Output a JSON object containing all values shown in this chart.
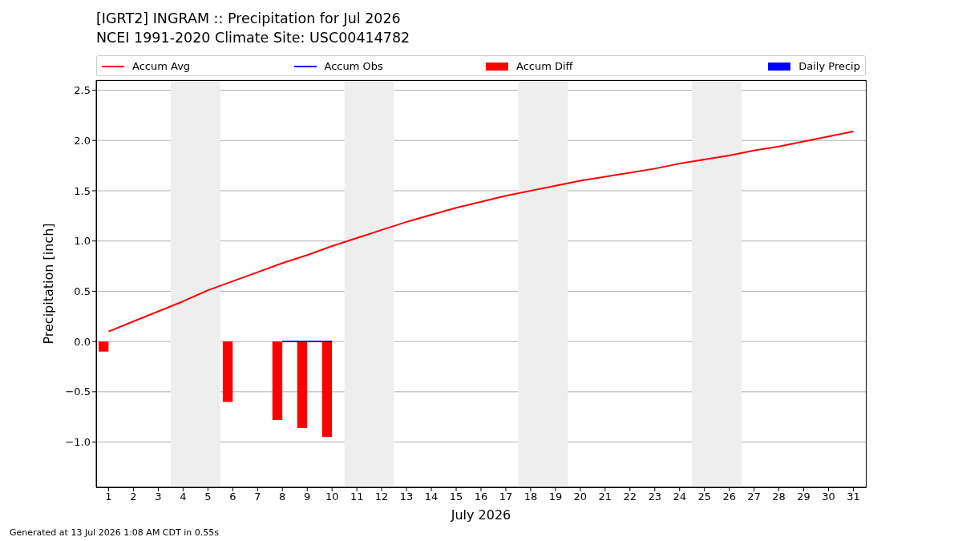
{
  "chart_data": {
    "type": "line",
    "title": "[IGRT2] INGRAM :: Precipitation for Jul 2026",
    "subtitle": "NCEI 1991-2020 Climate Site: USC00414782",
    "xlabel": "July 2026",
    "ylabel": "Precipitation [inch]",
    "annotations": [
      "Generated at 13 Jul 2026 1:08 AM CDT in 0.55s"
    ],
    "x": [
      1,
      2,
      3,
      4,
      5,
      6,
      7,
      8,
      9,
      10,
      11,
      12,
      13,
      14,
      15,
      16,
      17,
      18,
      19,
      20,
      21,
      22,
      23,
      24,
      25,
      26,
      27,
      28,
      29,
      30,
      31
    ],
    "xlim": [
      0.5,
      31.5
    ],
    "xticks": [
      1,
      2,
      3,
      4,
      5,
      6,
      7,
      8,
      9,
      10,
      11,
      12,
      13,
      14,
      15,
      16,
      17,
      18,
      19,
      20,
      21,
      22,
      23,
      24,
      25,
      26,
      27,
      28,
      29,
      30,
      31
    ],
    "ylim": [
      -1.45,
      2.6
    ],
    "yticks": [
      {
        "value": -1,
        "label": "−1.0"
      },
      {
        "value": -0.5,
        "label": "−0.5"
      },
      {
        "value": 0,
        "label": "0.0"
      },
      0.5,
      {
        "value": 1,
        "label": "1.0"
      },
      1.5,
      {
        "value": 2,
        "label": "2.0"
      },
      2.5
    ],
    "grid": "y",
    "legend": "top",
    "marker": "none",
    "bands": [
      {
        "axis": "x",
        "from": 3.5,
        "to": 5.5,
        "color": "#eeeeee"
      },
      {
        "axis": "x",
        "from": 10.5,
        "to": 12.5,
        "color": "#eeeeee"
      },
      {
        "axis": "x",
        "from": 17.5,
        "to": 19.5,
        "color": "#eeeeee"
      },
      {
        "axis": "x",
        "from": 24.5,
        "to": 26.5,
        "color": "#eeeeee"
      }
    ],
    "series": [
      {
        "name": "Accum Avg",
        "color": "#ff0000",
        "values": [
          0.1,
          0.2,
          0.3,
          0.4,
          0.51,
          0.6,
          0.69,
          0.78,
          0.86,
          0.95,
          1.03,
          1.11,
          1.19,
          1.26,
          1.33,
          1.39,
          1.45,
          1.5,
          1.55,
          1.6,
          1.64,
          1.68,
          1.72,
          1.77,
          1.81,
          1.85,
          1.9,
          1.94,
          1.99,
          2.04,
          2.09
        ]
      },
      {
        "name": "Accum Obs",
        "color": "#0000ff",
        "values": [
          null,
          null,
          null,
          null,
          null,
          null,
          null,
          0,
          0,
          0,
          null,
          null,
          null,
          null,
          null,
          null,
          null,
          null,
          null,
          null,
          null,
          null,
          null,
          null,
          null,
          null,
          null,
          null,
          null,
          null,
          null
        ]
      },
      {
        "name": "Accum Diff",
        "type": "bar",
        "color": "#ff0000",
        "values": [
          -0.1,
          null,
          null,
          null,
          null,
          -0.6,
          null,
          -0.78,
          -0.86,
          -0.95,
          null,
          null,
          null,
          null,
          null,
          null,
          null,
          null,
          null,
          null,
          null,
          null,
          null,
          null,
          null,
          null,
          null,
          null,
          null,
          null,
          null
        ]
      },
      {
        "name": "Daily Precip",
        "type": "bar",
        "color": "#0000ff",
        "values": [
          0,
          null,
          null,
          null,
          null,
          0,
          null,
          0,
          0,
          0,
          null,
          null,
          null,
          null,
          null,
          null,
          null,
          null,
          null,
          null,
          null,
          null,
          null,
          null,
          null,
          null,
          null,
          null,
          null,
          null,
          null
        ]
      }
    ]
  }
}
